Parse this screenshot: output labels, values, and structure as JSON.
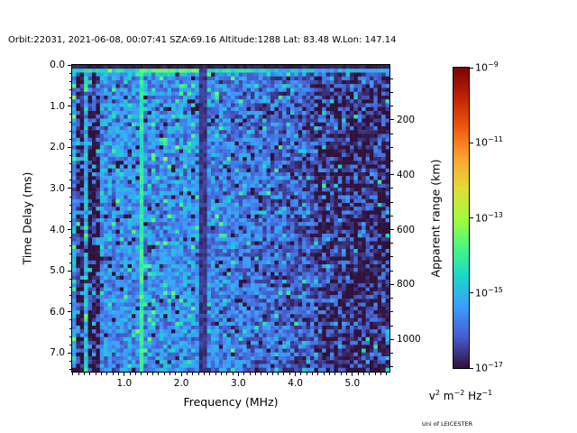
{
  "title": "Orbit:22031, 2021-06-08, 00:07:41 SZA:69.16 Altitude:1288 Lat: 83.48 W.Lon: 147.14",
  "credit": "Uni of LEICESTER",
  "colors": {
    "background": "#ffffff",
    "text": "#000000",
    "axes": "#000000"
  },
  "chart_data": {
    "type": "heatmap",
    "description": "Radar sounder ionogram spectrogram: spectral power density vs frequency and time delay",
    "xlabel": "Frequency (MHz)",
    "ylabel": "Time Delay (ms)",
    "y2label": "Apparent range (km)",
    "x_range_mhz": [
      0.085,
      5.65
    ],
    "y_range_ms": [
      0,
      7.45
    ],
    "km_per_ms": 150,
    "x_ticks": [
      {
        "v": 1.0,
        "label": "1.0"
      },
      {
        "v": 2.0,
        "label": "2.0"
      },
      {
        "v": 3.0,
        "label": "3.0"
      },
      {
        "v": 4.0,
        "label": "4.0"
      },
      {
        "v": 5.0,
        "label": "5.0"
      }
    ],
    "x_minor_step_mhz": 0.1,
    "y_ticks": [
      {
        "v": 0.0,
        "label": "0.0"
      },
      {
        "v": 1.0,
        "label": "1.0"
      },
      {
        "v": 2.0,
        "label": "2.0"
      },
      {
        "v": 3.0,
        "label": "3.0"
      },
      {
        "v": 4.0,
        "label": "4.0"
      },
      {
        "v": 5.0,
        "label": "5.0"
      },
      {
        "v": 6.0,
        "label": "6.0"
      },
      {
        "v": 7.0,
        "label": "7.0"
      }
    ],
    "y_minor_step_ms": 0.2,
    "y2_ticks": [
      {
        "v": 200,
        "label": "200"
      },
      {
        "v": 400,
        "label": "400"
      },
      {
        "v": 600,
        "label": "600"
      },
      {
        "v": 800,
        "label": "800"
      },
      {
        "v": 1000,
        "label": "1000"
      }
    ],
    "y2_minor_step_km": 50,
    "colorbar": {
      "colormap": "turbo",
      "scale": "log",
      "min_exp": -17,
      "max_exp": -9,
      "ticks": [
        {
          "exp": -9,
          "base": "10",
          "sup": "−9"
        },
        {
          "exp": -11,
          "base": "10",
          "sup": "−11"
        },
        {
          "exp": -13,
          "base": "10",
          "sup": "−13"
        },
        {
          "exp": -15,
          "base": "10",
          "sup": "−15"
        },
        {
          "exp": -17,
          "base": "10",
          "sup": "−17"
        }
      ],
      "unit_segments": [
        {
          "t": "v"
        },
        {
          "t": "2",
          "sup": true
        },
        {
          "t": " m"
        },
        {
          "t": "−2",
          "sup": true
        },
        {
          "t": " Hz"
        },
        {
          "t": "−1",
          "sup": true
        }
      ]
    },
    "grid": {
      "cols": 80,
      "rows": 80,
      "seed": 20210608
    },
    "field": {
      "base_exp": -15.55,
      "noise_amp": 0.75,
      "bright_prob": 0.09,
      "bright_boost": 1.15,
      "dark_prob": 0.1,
      "dark_drop": 1.15,
      "rolloff_start_mhz": 2.3,
      "rolloff_per_mhz": 0.33,
      "base_min_exp": -16.4,
      "highf_start_mhz": 4.3,
      "highf_prob": 0.38,
      "highf_drop": 0.85
    },
    "features": [
      {
        "kind": "band_dark",
        "name": "low-frequency absorption band 1",
        "mhz": [
          0.13,
          0.27
        ],
        "drop": 1.25,
        "skip_prob": 0.18
      },
      {
        "kind": "band_dark",
        "name": "low-frequency absorption band 2",
        "mhz": [
          0.36,
          0.58
        ],
        "drop": 1.45,
        "skip_prob": 0.15
      },
      {
        "kind": "band_very_dark",
        "name": "absorption band near 2.4 MHz",
        "mhz": [
          2.29,
          2.45
        ],
        "exp": -16.6,
        "jitter": 0.45
      },
      {
        "kind": "col_bright",
        "name": "plasma-frequency harmonic line 1.33 MHz",
        "mhz": 1.33,
        "half_width_mhz": 0.04,
        "exp": -14.6,
        "jitter": 0.9
      },
      {
        "kind": "col_bright_soft",
        "name": "bright column near 0.3 MHz",
        "mhz": 0.3,
        "half_width_mhz": 0.033,
        "boost": 0.55
      },
      {
        "kind": "row_blank",
        "name": "zero-delay blank bin",
        "row": 0,
        "exp": -16.85,
        "jitter": 0.15
      },
      {
        "kind": "row_bright",
        "name": "surface echo line ~0.2 ms",
        "row": 1,
        "exp": -14.45,
        "jitter": 0.85,
        "green_band_mhz": [
          1.3,
          2.32
        ],
        "green_boost": 0.65,
        "fade_above_mhz": 3.5,
        "fade_drop": 0.6
      },
      {
        "kind": "row_boost",
        "name": "near-delay enhancement",
        "row": 2,
        "boost": 0.3
      }
    ]
  }
}
